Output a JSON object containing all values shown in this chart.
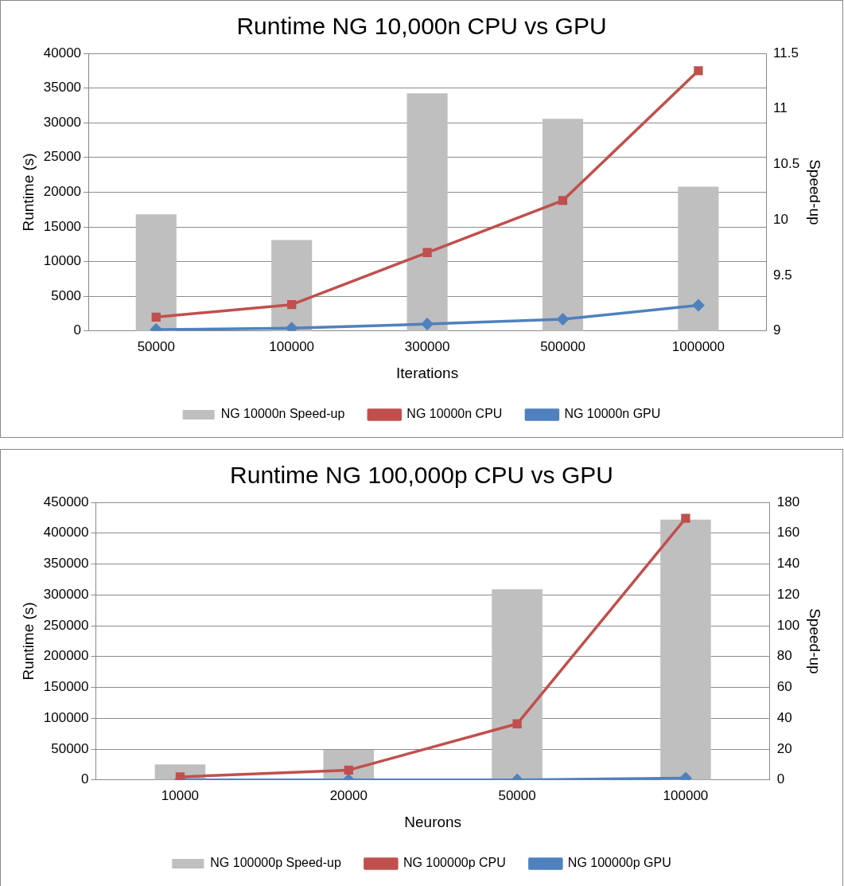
{
  "chart_data": [
    {
      "type": "bar",
      "title": "Runtime NG 10,000n CPU vs GPU",
      "xlabel": "Iterations",
      "ylabel": "Runtime (s)",
      "y2label": "Speed-up",
      "categories": [
        "50000",
        "100000",
        "300000",
        "500000",
        "1000000"
      ],
      "series": [
        {
          "name": "NG 10000n Speed-up",
          "axis": "y2",
          "color": "#bfbfbf",
          "values": [
            10.05,
            9.82,
            11.14,
            10.91,
            10.3
          ]
        },
        {
          "name": "NG 10000n CPU",
          "type": "line",
          "marker": "square",
          "color": "#c0504d",
          "values": [
            2000,
            3800,
            11300,
            18800,
            37500
          ]
        },
        {
          "name": "NG 10000n GPU",
          "type": "line",
          "marker": "diamond",
          "color": "#4f81bd",
          "values": [
            200,
            400,
            1000,
            1700,
            3700
          ]
        }
      ],
      "ylim": [
        0,
        40000
      ],
      "yticks": [
        0,
        5000,
        10000,
        15000,
        20000,
        25000,
        30000,
        35000,
        40000
      ],
      "y2lim": [
        9,
        11.5
      ],
      "y2ticks": [
        9,
        9.5,
        10,
        10.5,
        11,
        11.5
      ],
      "grid": "y",
      "legend": "bottom"
    },
    {
      "type": "bar",
      "title": "Runtime NG 100,000p CPU vs GPU",
      "xlabel": "Neurons",
      "ylabel": "Runtime (s)",
      "y2label": "Speed-up",
      "categories": [
        "10000",
        "20000",
        "50000",
        "100000"
      ],
      "series": [
        {
          "name": "NG 100000p Speed-up",
          "axis": "y2",
          "color": "#bfbfbf",
          "values": [
            10.1,
            19.5,
            123.6,
            168.8
          ]
        },
        {
          "name": "NG 100000p CPU",
          "type": "line",
          "marker": "square",
          "color": "#c0504d",
          "values": [
            5000,
            16000,
            91000,
            424000
          ]
        },
        {
          "name": "NG 100000p GPU",
          "type": "line",
          "marker": "diamond",
          "color": "#4f81bd",
          "values": [
            0,
            0,
            0,
            3000
          ]
        }
      ],
      "ylim": [
        0,
        450000
      ],
      "yticks": [
        0,
        50000,
        100000,
        150000,
        200000,
        250000,
        300000,
        350000,
        400000,
        450000
      ],
      "y2lim": [
        0,
        180
      ],
      "y2ticks": [
        0,
        20,
        40,
        60,
        80,
        100,
        120,
        140,
        160,
        180
      ],
      "grid": "y",
      "legend": "bottom"
    }
  ]
}
